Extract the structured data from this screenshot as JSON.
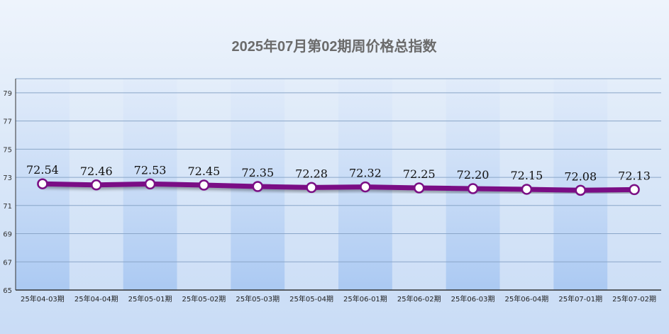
{
  "chart_data": {
    "type": "line",
    "title": "2025年07月第02期周价格总指数",
    "xlabel": "",
    "ylabel": "",
    "categories": [
      "25年04-03期",
      "25年04-04期",
      "25年05-01期",
      "25年05-02期",
      "25年05-03期",
      "25年05-04期",
      "25年06-01期",
      "25年06-02期",
      "25年06-03期",
      "25年06-04期",
      "25年07-01期",
      "25年07-02期"
    ],
    "series": [
      {
        "values": [
          72.54,
          72.46,
          72.53,
          72.45,
          72.35,
          72.28,
          72.32,
          72.25,
          72.2,
          72.15,
          72.08,
          72.13
        ]
      }
    ],
    "data_labels": [
      "72.54",
      "72.46",
      "72.53",
      "72.45",
      "72.35",
      "72.28",
      "72.32",
      "72.25",
      "72.20",
      "72.15",
      "72.08",
      "72.13"
    ],
    "ylim": [
      65,
      80
    ],
    "yticks": [
      65,
      67,
      69,
      71,
      73,
      75,
      77,
      79
    ],
    "grid": true,
    "legend": "none",
    "colors": {
      "line": "#7a0f85",
      "marker_fill": "#ffffff",
      "band": "#b9d3f5",
      "grid": "#8aa6c8",
      "axis": "#333333"
    }
  }
}
